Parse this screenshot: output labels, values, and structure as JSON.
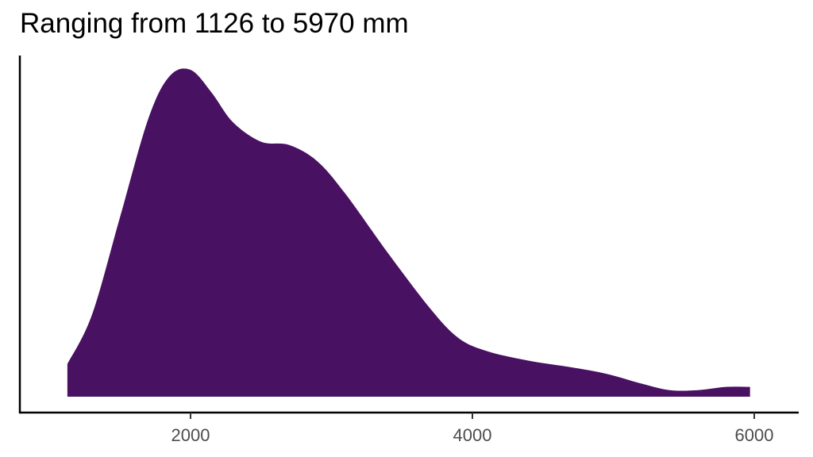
{
  "chart_data": {
    "type": "area",
    "subtype": "density",
    "title": "Ranging from 1126 to 5970 mm",
    "xlabel": "",
    "ylabel": "",
    "xlim": [
      900,
      6300
    ],
    "x_ticks": [
      2000,
      4000,
      6000
    ],
    "x_tick_labels": [
      "2000",
      "4000",
      "6000"
    ],
    "y_ticks": [],
    "grid": false,
    "legend": null,
    "fill_color": "#481162",
    "data_range": [
      1126,
      5970
    ],
    "x": [
      1126,
      1300,
      1500,
      1700,
      1850,
      2000,
      2150,
      2300,
      2500,
      2700,
      2900,
      3100,
      3400,
      3700,
      3900,
      4100,
      4400,
      4700,
      4950,
      5200,
      5400,
      5600,
      5800,
      5970
    ],
    "values": [
      0.1,
      0.25,
      0.55,
      0.85,
      0.98,
      1.0,
      0.93,
      0.84,
      0.78,
      0.77,
      0.72,
      0.62,
      0.44,
      0.27,
      0.18,
      0.14,
      0.11,
      0.09,
      0.07,
      0.04,
      0.02,
      0.02,
      0.03,
      0.03
    ],
    "values_note": "relative density (peak normalized to 1), estimated from curve height"
  },
  "axes": {
    "x_tick_labels": [
      "2000",
      "4000",
      "6000"
    ]
  }
}
